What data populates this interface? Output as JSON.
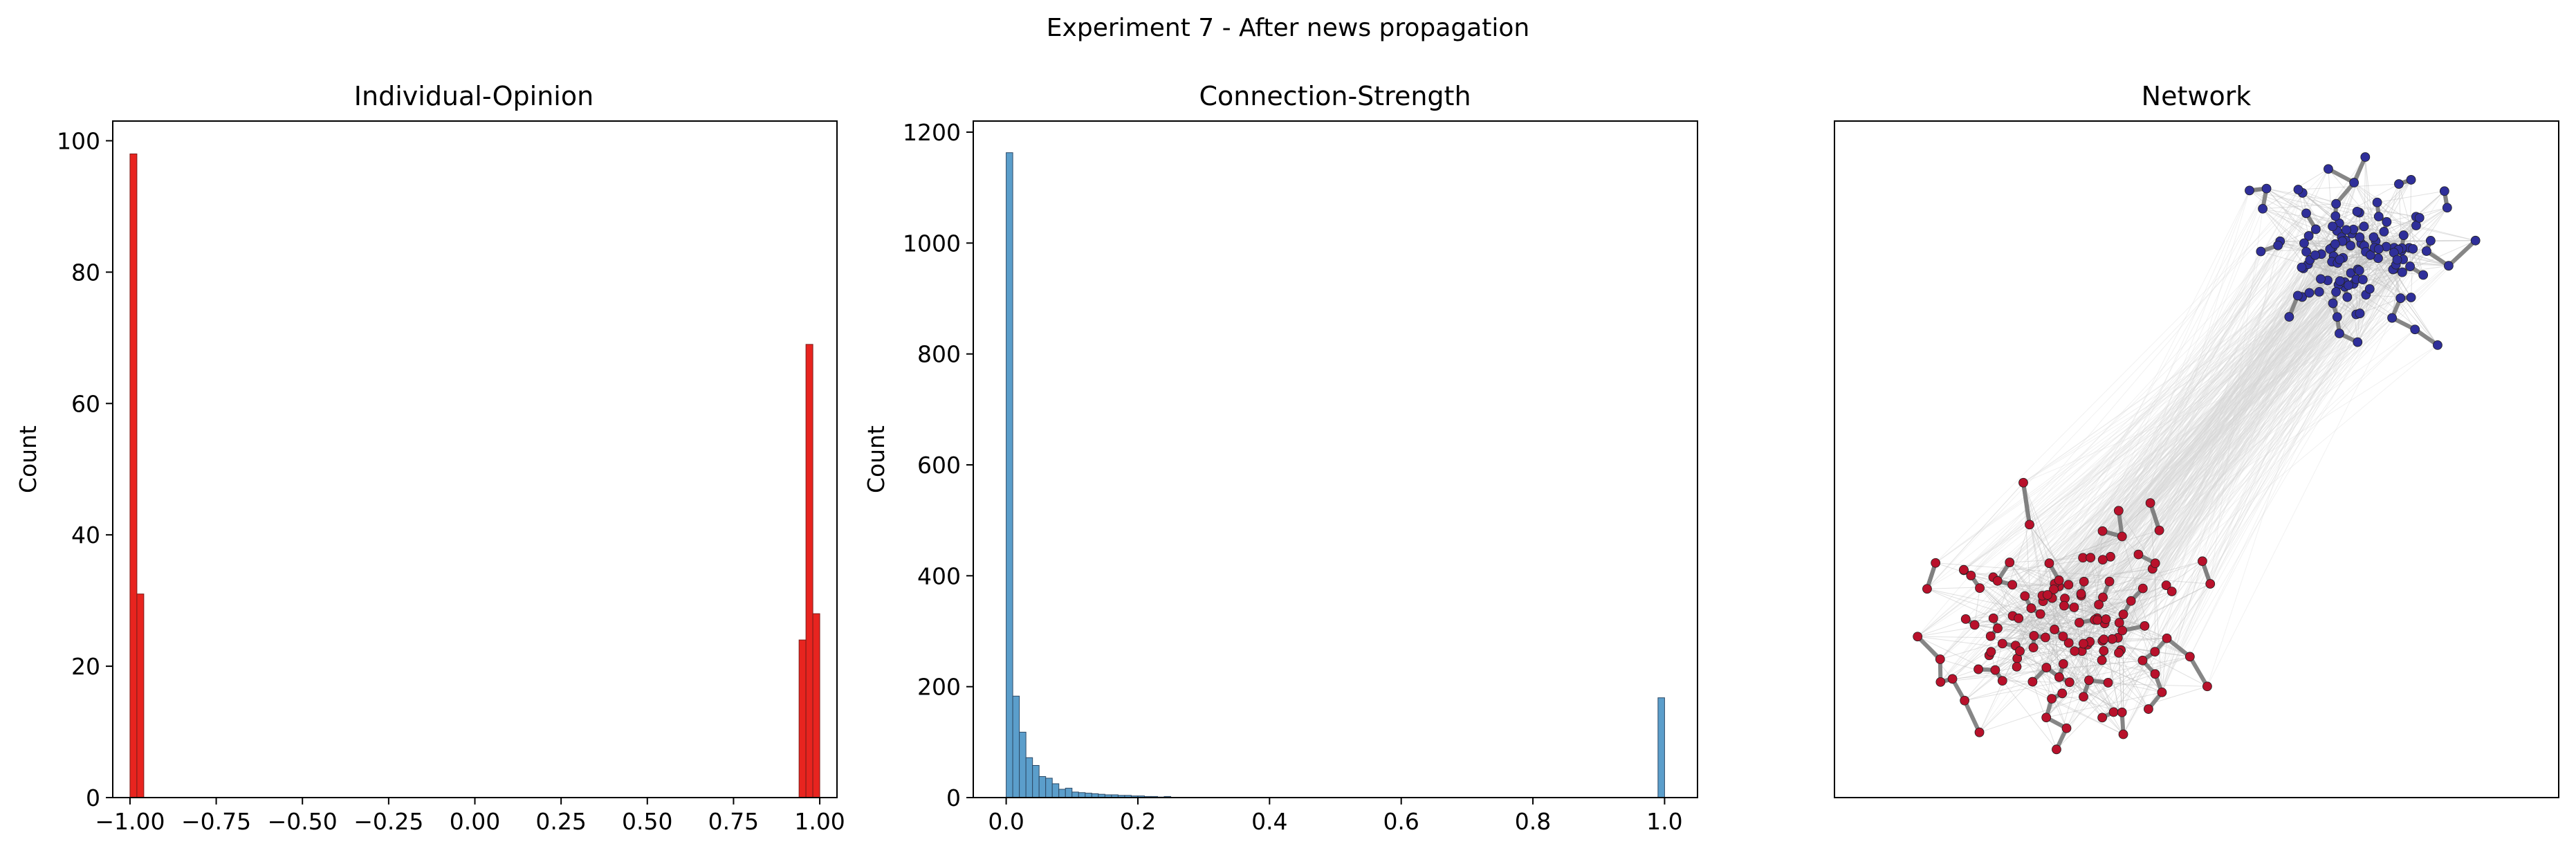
{
  "figure": {
    "suptitle": "Experiment 7 - After news propagation"
  },
  "colors": {
    "opinion_bar": "#e8241f",
    "opinion_edge": "#7a1d1a",
    "strength_bar": "#5b9ecb",
    "strength_edge": "#2e4a66",
    "node_negative": "#b8112b",
    "node_positive": "#2f2f9a",
    "strong_edge": "#808080",
    "weak_edge": "#d6d6d6"
  },
  "chart_data": [
    {
      "type": "bar",
      "title": "Individual-Opinion",
      "xlabel": "",
      "ylabel": "Count",
      "xlim": [
        -1.05,
        1.05
      ],
      "ylim": [
        0,
        103
      ],
      "xticks": [
        -1.0,
        -0.75,
        -0.5,
        -0.25,
        0.0,
        0.25,
        0.5,
        0.75,
        1.0
      ],
      "xtick_labels": [
        "−1.00",
        "−0.75",
        "−0.50",
        "−0.25",
        "0.00",
        "0.25",
        "0.50",
        "0.75",
        "1.00"
      ],
      "yticks": [
        0,
        20,
        40,
        60,
        80,
        100
      ],
      "ytick_labels": [
        "0",
        "20",
        "40",
        "60",
        "80",
        "100"
      ],
      "bin_width": 0.02,
      "bin_starts": [
        -1.0,
        -0.98,
        0.94,
        0.96,
        0.98
      ],
      "values": [
        98,
        31,
        24,
        69,
        28
      ]
    },
    {
      "type": "bar",
      "title": "Connection-Strength",
      "xlabel": "",
      "ylabel": "Count",
      "xlim": [
        -0.05,
        1.05
      ],
      "ylim": [
        0,
        1220
      ],
      "xticks": [
        0.0,
        0.2,
        0.4,
        0.6,
        0.8,
        1.0
      ],
      "xtick_labels": [
        "0.0",
        "0.2",
        "0.4",
        "0.6",
        "0.8",
        "1.0"
      ],
      "yticks": [
        0,
        200,
        400,
        600,
        800,
        1000,
        1200
      ],
      "ytick_labels": [
        "0",
        "200",
        "400",
        "600",
        "800",
        "1000",
        "1200"
      ],
      "bin_width": 0.01,
      "bin_starts": [
        0.0,
        0.01,
        0.02,
        0.03,
        0.04,
        0.05,
        0.06,
        0.07,
        0.08,
        0.09,
        0.1,
        0.11,
        0.12,
        0.13,
        0.14,
        0.15,
        0.16,
        0.17,
        0.18,
        0.19,
        0.2,
        0.21,
        0.22,
        0.23,
        0.24,
        0.99
      ],
      "values": [
        1163,
        183,
        118,
        72,
        58,
        38,
        35,
        25,
        15,
        17,
        10,
        9,
        8,
        7,
        6,
        5,
        5,
        4,
        4,
        3,
        3,
        2,
        2,
        1,
        2,
        180
      ]
    },
    {
      "type": "network",
      "title": "Network",
      "groups": [
        {
          "name": "opinion -1",
          "color_key": "node_negative",
          "node_count": 129
        },
        {
          "name": "opinion +1",
          "color_key": "node_positive",
          "node_count": 121
        }
      ]
    }
  ]
}
